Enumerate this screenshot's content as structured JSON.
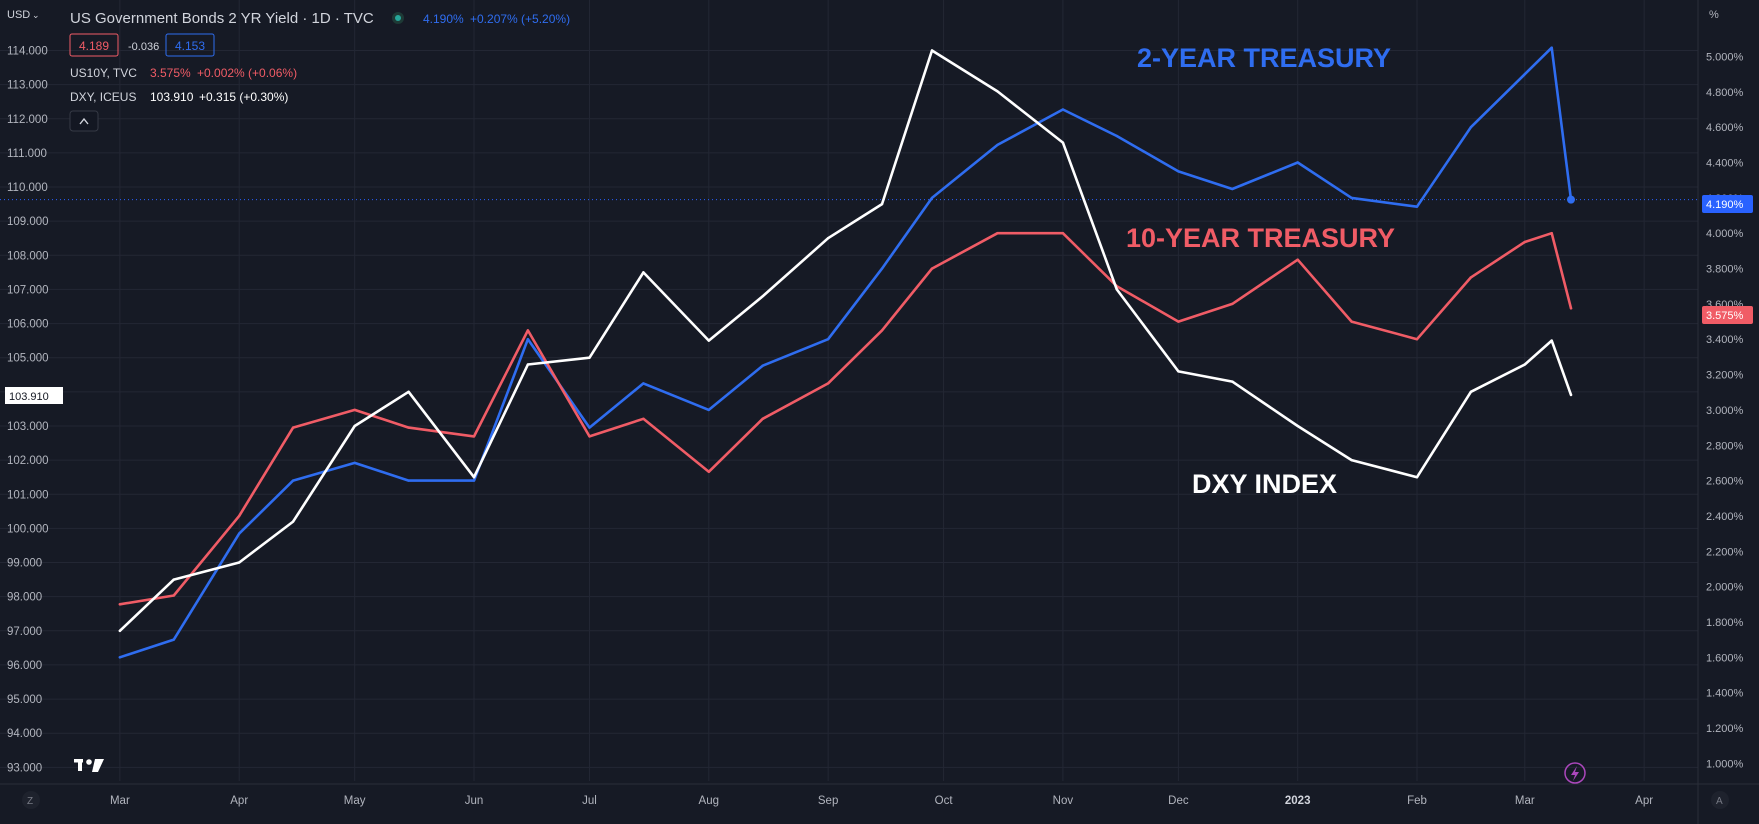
{
  "header": {
    "currency": "USD",
    "title": "US Government Bonds 2 YR Yield · 1D · TVC",
    "last_value": "4.190%",
    "change": "+0.207% (+5.20%)",
    "bid": "4.189",
    "spread": "-0.036",
    "ask": "4.153",
    "collapse_icon": "chevron-up-icon"
  },
  "legend": [
    {
      "symbol": "US10Y, TVC",
      "value": "3.575%",
      "change": "+0.002% (+0.06%)",
      "color": "#f05c66"
    },
    {
      "symbol": "DXY, ICEUS",
      "value": "103.910",
      "change": "+0.315 (+0.30%)",
      "color": "#ffffff"
    }
  ],
  "left_axis": {
    "ticks": [
      "114.000",
      "113.000",
      "112.000",
      "111.000",
      "110.000",
      "109.000",
      "108.000",
      "107.000",
      "106.000",
      "105.000",
      "104.000",
      "103.000",
      "102.000",
      "101.000",
      "100.000",
      "99.000",
      "98.000",
      "97.000",
      "96.000",
      "95.000",
      "94.000",
      "93.000"
    ],
    "badge": "103.910"
  },
  "right_axis": {
    "unit": "%",
    "ticks": [
      "5.000%",
      "4.800%",
      "4.600%",
      "4.400%",
      "4.200%",
      "4.000%",
      "3.800%",
      "3.600%",
      "3.400%",
      "3.200%",
      "3.000%",
      "2.800%",
      "2.600%",
      "2.400%",
      "2.200%",
      "2.000%",
      "1.800%",
      "1.600%",
      "1.400%",
      "1.200%",
      "1.000%"
    ],
    "badge_2y": "4.190%",
    "badge_10y": "3.575%"
  },
  "x_axis": {
    "labels": [
      "Mar",
      "Apr",
      "May",
      "Jun",
      "Jul",
      "Aug",
      "Sep",
      "Oct",
      "Nov",
      "Dec",
      "2023",
      "Feb",
      "Mar",
      "Apr"
    ],
    "left_button": "Z",
    "right_button": "A"
  },
  "annotations": {
    "two_year": "2-YEAR TREASURY",
    "ten_year": "10-YEAR TREASURY",
    "dxy": "DXY INDEX"
  },
  "colors": {
    "background": "#161a25",
    "grid": "#232734",
    "two_year": "#2f6df0",
    "ten_year": "#f05c66",
    "dxy": "#ffffff",
    "badge_2y": "#2962ff",
    "badge_10y": "#f05c66"
  },
  "icons": {
    "logo": "tradingview-logo",
    "flash": "lightning-icon"
  },
  "chart_data": {
    "type": "line",
    "x": [
      "2022-03-01",
      "2022-03-15",
      "2022-04-01",
      "2022-04-15",
      "2022-05-01",
      "2022-05-15",
      "2022-06-01",
      "2022-06-15",
      "2022-07-01",
      "2022-07-15",
      "2022-08-01",
      "2022-08-15",
      "2022-09-01",
      "2022-09-15",
      "2022-09-28",
      "2022-10-15",
      "2022-11-01",
      "2022-11-15",
      "2022-12-01",
      "2022-12-15",
      "2023-01-01",
      "2023-01-15",
      "2023-02-01",
      "2023-02-15",
      "2023-03-01",
      "2023-03-08",
      "2023-03-13"
    ],
    "series": [
      {
        "name": "US Government Bonds 2 YR Yield",
        "axis": "right",
        "unit": "%",
        "values": [
          1.6,
          1.7,
          2.3,
          2.6,
          2.7,
          2.6,
          2.6,
          3.4,
          2.9,
          3.15,
          3.0,
          3.25,
          3.4,
          3.8,
          4.2,
          4.5,
          4.7,
          4.55,
          4.35,
          4.25,
          4.4,
          4.2,
          4.15,
          4.6,
          4.9,
          5.05,
          4.19
        ]
      },
      {
        "name": "US10Y",
        "axis": "right",
        "unit": "%",
        "values": [
          1.9,
          1.95,
          2.4,
          2.9,
          3.0,
          2.9,
          2.85,
          3.45,
          2.85,
          2.95,
          2.65,
          2.95,
          3.15,
          3.45,
          3.8,
          4.0,
          4.0,
          3.7,
          3.5,
          3.6,
          3.85,
          3.5,
          3.4,
          3.75,
          3.95,
          4.0,
          3.575
        ]
      },
      {
        "name": "DXY",
        "axis": "left",
        "unit": "",
        "values": [
          97.0,
          98.5,
          99.0,
          100.2,
          103.0,
          104.0,
          101.5,
          104.8,
          105.0,
          107.5,
          105.5,
          106.8,
          108.5,
          109.5,
          114.0,
          112.8,
          111.3,
          107.0,
          104.6,
          104.3,
          103.0,
          102.0,
          101.5,
          104.0,
          104.8,
          105.5,
          103.91
        ]
      }
    ],
    "left_ylim": [
      92.6,
      114.6
    ],
    "right_ylim": [
      0.9,
      5.15
    ],
    "grid": true,
    "title": "US Government Bonds 2 YR Yield · 1D · TVC",
    "xlabel": "",
    "ylabel_left": "",
    "ylabel_right": "%"
  }
}
